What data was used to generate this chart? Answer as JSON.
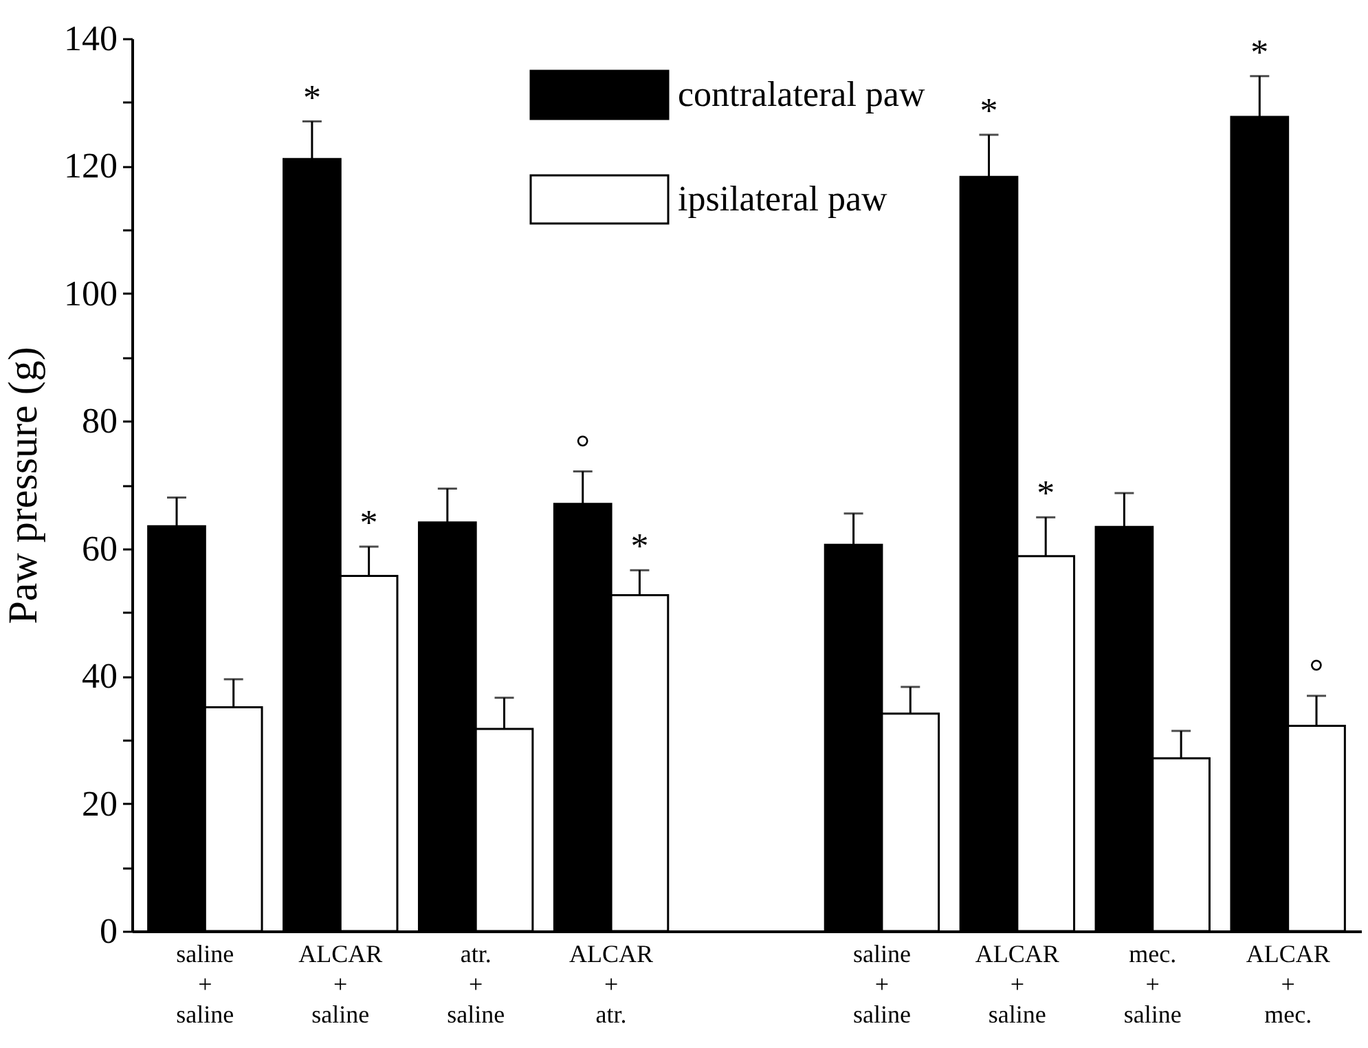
{
  "chart_data": {
    "type": "bar",
    "ylabel": "Paw pressure (g)",
    "categories": [
      "saline\n+\nsaline",
      "ALCAR\n+\nsaline",
      "atr.\n+\nsaline",
      "ALCAR\n+\natr.",
      null,
      "saline\n+\nsaline",
      "ALCAR\n+\nsaline",
      "mec.\n+\nsaline",
      "ALCAR\n+\nmec."
    ],
    "series": [
      {
        "name": "contralateral paw",
        "color": "#000000",
        "values": [
          63.5,
          121.1,
          64.1,
          67.0,
          null,
          60.6,
          118.3,
          63.4,
          127.7
        ],
        "errors": [
          [
            63.5,
            68.0
          ],
          [
            121.1,
            127.0
          ],
          [
            64.1,
            69.4
          ],
          [
            67.0,
            72.1
          ],
          null,
          [
            60.6,
            65.5
          ],
          [
            118.3,
            124.9
          ],
          [
            63.4,
            68.7
          ],
          [
            127.7,
            134.1
          ]
        ],
        "value_labels": [
          null,
          "*",
          null,
          "°",
          null,
          null,
          "*",
          null,
          "*"
        ]
      },
      {
        "name": "ipsilateral paw",
        "color": "#ffffff",
        "values": [
          35.1,
          55.7,
          31.7,
          52.7,
          null,
          34.1,
          58.8,
          27.1,
          32.2
        ],
        "errors": [
          [
            35.1,
            39.5
          ],
          [
            55.7,
            60.3
          ],
          [
            31.7,
            36.6
          ],
          [
            52.7,
            56.6
          ],
          null,
          [
            34.1,
            38.3
          ],
          [
            58.8,
            64.9
          ],
          [
            27.1,
            31.4
          ],
          [
            32.2,
            36.9
          ]
        ],
        "value_labels": [
          null,
          "*",
          null,
          "*",
          null,
          null,
          "*",
          null,
          "°"
        ]
      }
    ],
    "ylim": [
      0,
      140
    ],
    "yticks": [
      0,
      {
        "value": 10,
        "label": null
      },
      20,
      {
        "value": 30,
        "label": null
      },
      40,
      {
        "value": 50,
        "label": null
      },
      60,
      {
        "value": 70,
        "label": null
      },
      80,
      {
        "value": 90,
        "label": null
      },
      100,
      {
        "value": 110,
        "label": null
      },
      120,
      {
        "value": 130,
        "label": null
      },
      140
    ],
    "grid": false,
    "legend": "top"
  }
}
